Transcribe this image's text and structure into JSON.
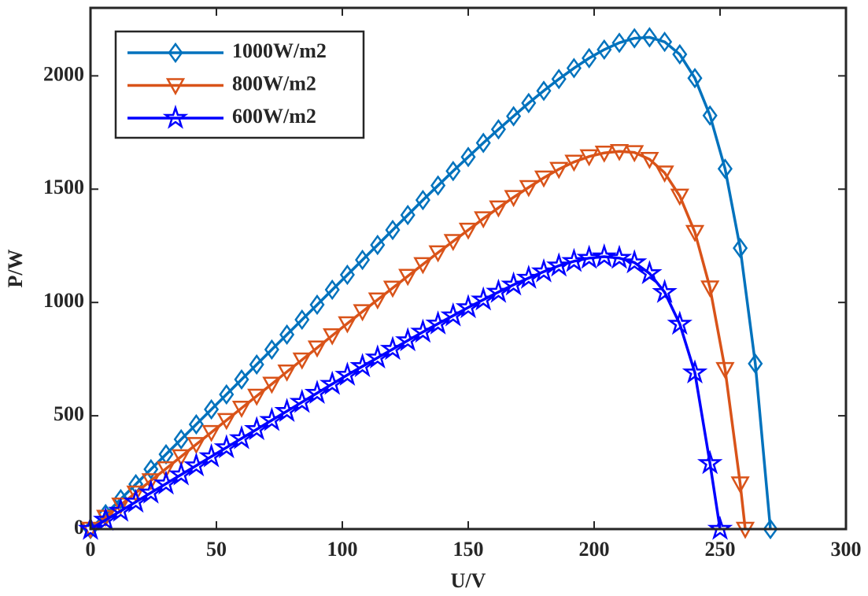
{
  "chart_data": {
    "type": "line",
    "xlabel": "U/V",
    "ylabel": "P/W",
    "xlim": [
      0,
      300
    ],
    "xticks": [
      0,
      50,
      100,
      150,
      200,
      250,
      300
    ],
    "ylim": [
      0,
      2300
    ],
    "yticks": [
      0,
      500,
      1000,
      1500,
      2000
    ],
    "grid": false,
    "legend": "upper left",
    "series": [
      {
        "name": "1000W/m2",
        "color": "#0072BD",
        "marker": "diamond",
        "x": [
          0,
          6,
          12,
          18,
          24,
          30,
          36,
          42,
          48,
          54,
          60,
          66,
          72,
          78,
          84,
          90,
          96,
          102,
          108,
          114,
          120,
          126,
          132,
          138,
          144,
          150,
          156,
          162,
          168,
          174,
          180,
          186,
          192,
          198,
          204,
          210,
          216,
          222,
          228,
          234,
          240,
          246,
          252,
          258,
          264,
          270
        ],
        "values": [
          0,
          66,
          132,
          198,
          264,
          330,
          396,
          462,
          528,
          594,
          660,
          726,
          792,
          858,
          924,
          990,
          1056,
          1122,
          1188,
          1254,
          1320,
          1386,
          1452,
          1516,
          1580,
          1642,
          1704,
          1764,
          1822,
          1880,
          1934,
          1986,
          2034,
          2078,
          2116,
          2146,
          2166,
          2170,
          2150,
          2095,
          1990,
          1825,
          1590,
          1240,
          730,
          0
        ]
      },
      {
        "name": "800W/m2",
        "color": "#D95319",
        "marker": "triangle-down",
        "x": [
          0,
          6,
          12,
          18,
          24,
          30,
          36,
          42,
          48,
          54,
          60,
          66,
          72,
          78,
          84,
          90,
          96,
          102,
          108,
          114,
          120,
          126,
          132,
          138,
          144,
          150,
          156,
          162,
          168,
          174,
          180,
          186,
          192,
          198,
          204,
          210,
          216,
          222,
          228,
          234,
          240,
          246,
          252,
          258,
          260
        ],
        "values": [
          0,
          53,
          107,
          160,
          214,
          267,
          320,
          374,
          427,
          480,
          534,
          587,
          640,
          694,
          747,
          800,
          854,
          907,
          960,
          1012,
          1064,
          1116,
          1168,
          1220,
          1270,
          1320,
          1370,
          1418,
          1464,
          1508,
          1550,
          1588,
          1620,
          1644,
          1660,
          1667,
          1662,
          1632,
          1572,
          1470,
          1310,
          1065,
          705,
          200,
          0
        ]
      },
      {
        "name": "600W/m2",
        "color": "#0000FF",
        "marker": "pentagram",
        "x": [
          0,
          6,
          12,
          18,
          24,
          30,
          36,
          42,
          48,
          54,
          60,
          66,
          72,
          78,
          84,
          90,
          96,
          102,
          108,
          114,
          120,
          126,
          132,
          138,
          144,
          150,
          156,
          162,
          168,
          174,
          180,
          186,
          192,
          198,
          204,
          210,
          216,
          222,
          228,
          234,
          240,
          246,
          250
        ],
        "values": [
          0,
          40,
          80,
          120,
          160,
          200,
          240,
          280,
          320,
          360,
          400,
          440,
          480,
          520,
          560,
          600,
          640,
          680,
          718,
          756,
          794,
          832,
          870,
          906,
          942,
          978,
          1012,
          1046,
          1078,
          1108,
          1136,
          1162,
          1182,
          1196,
          1202,
          1196,
          1176,
          1128,
          1045,
          905,
          690,
          290,
          0
        ]
      }
    ]
  }
}
